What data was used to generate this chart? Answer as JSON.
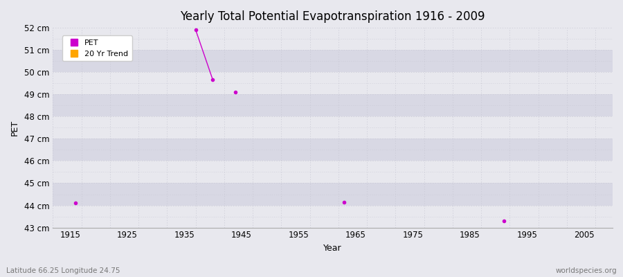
{
  "title": "Yearly Total Potential Evapotranspiration 1916 - 2009",
  "xlabel": "Year",
  "ylabel": "PET",
  "subtitle_left": "Latitude 66.25 Longitude 24.75",
  "subtitle_right": "worldspecies.org",
  "xlim": [
    1912,
    2010
  ],
  "ylim": [
    43,
    52
  ],
  "yticks": [
    43,
    44,
    45,
    46,
    47,
    48,
    49,
    50,
    51,
    52
  ],
  "ytick_labels": [
    "43 cm",
    "44 cm",
    "45 cm",
    "46 cm",
    "47 cm",
    "48 cm",
    "49 cm",
    "50 cm",
    "51 cm",
    "52 cm"
  ],
  "xticks": [
    1915,
    1925,
    1935,
    1945,
    1955,
    1965,
    1975,
    1985,
    1995,
    2005
  ],
  "band_colors": [
    "#e8e8ee",
    "#d8d8e4"
  ],
  "plot_bg_color": "#e8e8ee",
  "grid_color": "#c8c8d4",
  "pet_color": "#cc00cc",
  "trend_color": "#ffa500",
  "pet_points": [
    [
      1916,
      44.1
    ],
    [
      1944,
      49.1
    ],
    [
      1963,
      44.15
    ],
    [
      1991,
      43.3
    ]
  ],
  "pet_line": [
    [
      1937,
      51.9
    ],
    [
      1940,
      49.65
    ]
  ]
}
